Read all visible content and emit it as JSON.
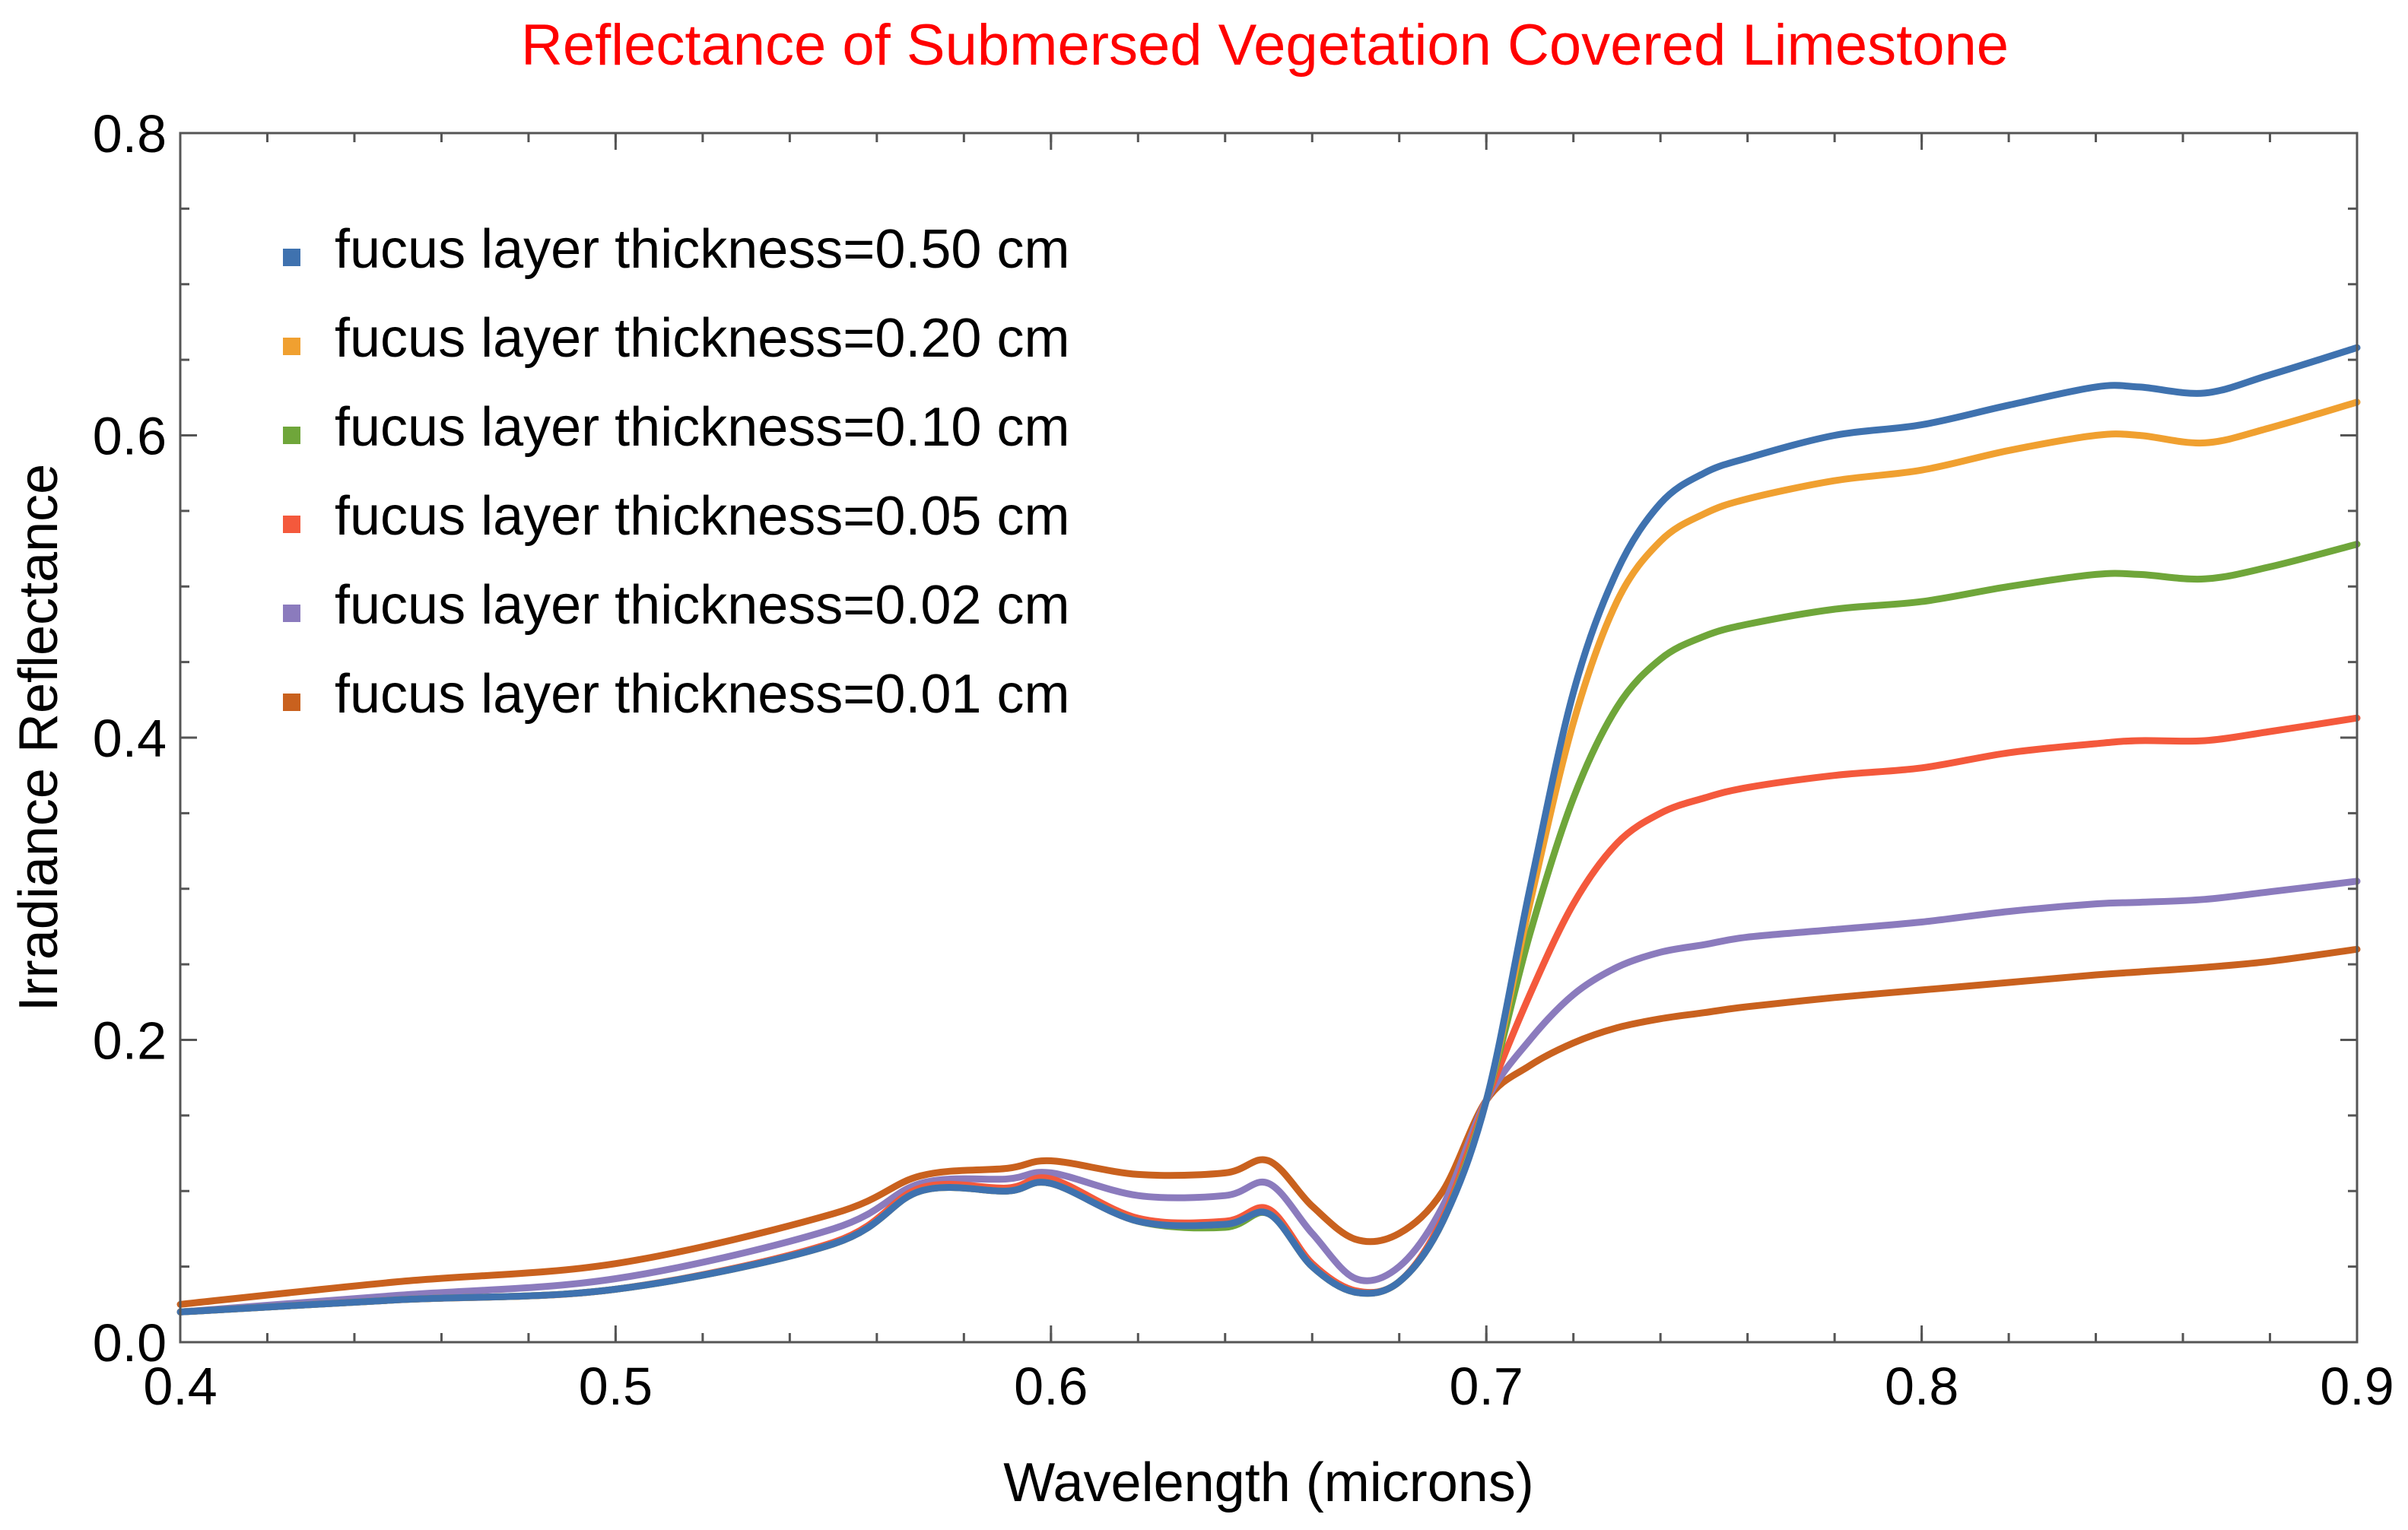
{
  "chart_data": {
    "type": "line",
    "title": "Reflectance of Submersed Vegetation Covered Limestone",
    "xlabel": "Wavelength (microns)",
    "ylabel": "Irradiance Reflectance",
    "xlim": [
      0.4,
      0.9
    ],
    "ylim": [
      0.0,
      0.8
    ],
    "x_ticks": [
      0.4,
      0.5,
      0.6,
      0.7,
      0.8,
      0.9
    ],
    "x_tick_labels": [
      "0.4",
      "0.5",
      "0.6",
      "0.7",
      "0.8",
      "0.9"
    ],
    "y_ticks": [
      0.0,
      0.2,
      0.4,
      0.6,
      0.8
    ],
    "y_tick_labels": [
      "0.0",
      "0.2",
      "0.4",
      "0.6",
      "0.8"
    ],
    "x_minor_step": 0.02,
    "y_minor_step": 0.05,
    "legend_position": "top-left",
    "x": [
      0.4,
      0.45,
      0.5,
      0.55,
      0.57,
      0.59,
      0.6,
      0.62,
      0.64,
      0.65,
      0.66,
      0.67,
      0.68,
      0.69,
      0.7,
      0.71,
      0.72,
      0.73,
      0.74,
      0.75,
      0.76,
      0.78,
      0.8,
      0.82,
      0.84,
      0.85,
      0.865,
      0.88,
      0.9
    ],
    "series": [
      {
        "name": "fucus layer thickness=0.50 cm",
        "color": "#3f72af",
        "values": [
          0.02,
          0.028,
          0.035,
          0.065,
          0.1,
          0.1,
          0.105,
          0.08,
          0.078,
          0.085,
          0.05,
          0.033,
          0.04,
          0.08,
          0.16,
          0.3,
          0.43,
          0.51,
          0.555,
          0.575,
          0.585,
          0.6,
          0.607,
          0.62,
          0.632,
          0.632,
          0.628,
          0.64,
          0.658
        ]
      },
      {
        "name": "fucus layer thickness=0.20 cm",
        "color": "#f0a030",
        "values": [
          0.02,
          0.028,
          0.035,
          0.065,
          0.1,
          0.1,
          0.105,
          0.08,
          0.078,
          0.085,
          0.05,
          0.033,
          0.04,
          0.08,
          0.16,
          0.29,
          0.41,
          0.49,
          0.53,
          0.548,
          0.558,
          0.57,
          0.577,
          0.59,
          0.6,
          0.6,
          0.595,
          0.605,
          0.622
        ]
      },
      {
        "name": "fucus layer thickness=0.10 cm",
        "color": "#6fa63a",
        "values": [
          0.02,
          0.028,
          0.035,
          0.065,
          0.1,
          0.1,
          0.105,
          0.08,
          0.076,
          0.085,
          0.05,
          0.033,
          0.04,
          0.08,
          0.16,
          0.27,
          0.36,
          0.42,
          0.452,
          0.467,
          0.475,
          0.485,
          0.49,
          0.5,
          0.508,
          0.508,
          0.505,
          0.513,
          0.528
        ]
      },
      {
        "name": "fucus layer thickness=0.05 cm",
        "color": "#f4593c",
        "values": [
          0.02,
          0.028,
          0.035,
          0.066,
          0.102,
          0.102,
          0.108,
          0.082,
          0.08,
          0.088,
          0.052,
          0.034,
          0.04,
          0.082,
          0.16,
          0.23,
          0.29,
          0.33,
          0.35,
          0.36,
          0.367,
          0.375,
          0.38,
          0.39,
          0.396,
          0.398,
          0.398,
          0.404,
          0.413
        ]
      },
      {
        "name": "fucus layer thickness=0.02 cm",
        "color": "#8b7bbd",
        "values": [
          0.02,
          0.031,
          0.042,
          0.075,
          0.105,
          0.108,
          0.112,
          0.097,
          0.097,
          0.105,
          0.072,
          0.042,
          0.05,
          0.09,
          0.16,
          0.2,
          0.23,
          0.248,
          0.258,
          0.263,
          0.268,
          0.273,
          0.278,
          0.285,
          0.29,
          0.291,
          0.293,
          0.298,
          0.305
        ]
      },
      {
        "name": "fucus layer thickness=0.01 cm",
        "color": "#c9611e",
        "values": [
          0.025,
          0.04,
          0.052,
          0.085,
          0.11,
          0.115,
          0.12,
          0.111,
          0.112,
          0.12,
          0.09,
          0.068,
          0.072,
          0.1,
          0.16,
          0.183,
          0.198,
          0.208,
          0.214,
          0.218,
          0.222,
          0.228,
          0.233,
          0.238,
          0.243,
          0.245,
          0.248,
          0.252,
          0.26
        ]
      }
    ]
  }
}
